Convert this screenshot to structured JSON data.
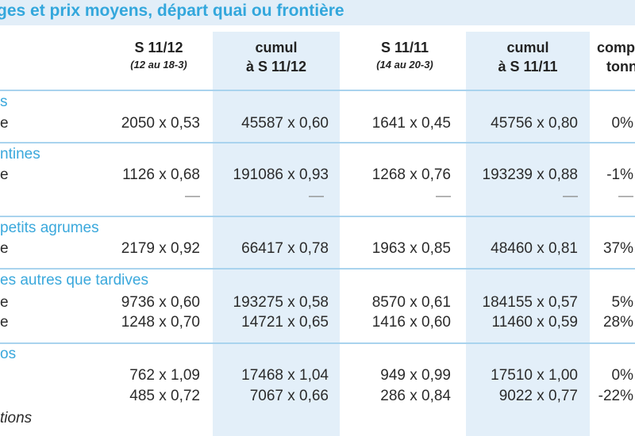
{
  "title": "ges et prix moyens, départ quai ou frontière",
  "columns": [
    {
      "label": "S 11/12",
      "sub": "(12 au 18-3)"
    },
    {
      "label": "cumul",
      "sub2": "à S 11/12"
    },
    {
      "label": "S 11/11",
      "sub": "(14 au 20-3)"
    },
    {
      "label": "cumul",
      "sub2": "à S 11/11"
    },
    {
      "label": "comp",
      "sub2": "tonn"
    }
  ],
  "sections": [
    {
      "name": "s",
      "rows": [
        {
          "label": "e",
          "cells": [
            "2050 x 0,53",
            "45587 x 0,60",
            "1641 x 0,45",
            "45756 x 0,80",
            "0%"
          ]
        }
      ]
    },
    {
      "name": "ntines",
      "rows": [
        {
          "label": "e",
          "cells": [
            "1126 x 0,68",
            "191086 x 0,93",
            "1268 x 0,76",
            "193239 x 0,88",
            "-1%"
          ]
        },
        {
          "label": "",
          "cells": [
            "—",
            "—",
            "—",
            "—",
            "—"
          ]
        }
      ]
    },
    {
      "name": "petits agrumes",
      "rows": [
        {
          "label": "e",
          "cells": [
            "2179 x 0,92",
            "66417 x 0,78",
            "1963 x 0,85",
            "48460 x 0,81",
            "37%"
          ]
        }
      ]
    },
    {
      "name": "es autres que tardives",
      "rows": [
        {
          "label": "e",
          "cells": [
            "9736 x 0,60",
            "193275 x 0,58",
            "8570 x 0,61",
            "184155 x 0,57",
            "5%"
          ]
        },
        {
          "label": "e",
          "cells": [
            "1248 x 0,70",
            "14721 x 0,65",
            "1416 x 0,60",
            "11460 x 0,59",
            "28%"
          ]
        }
      ]
    },
    {
      "name": "os",
      "rows": [
        {
          "label": "",
          "cells": [
            "762 x 1,09",
            "17468 x 1,04",
            "949 x 0,99",
            "17510 x 1,00",
            "0%"
          ]
        },
        {
          "label": "",
          "cells": [
            "485 x 0,72",
            "7067 x 0,66",
            "286 x 0,84",
            "9022 x 0,77",
            "-22%"
          ]
        }
      ]
    }
  ],
  "footer": "tions"
}
